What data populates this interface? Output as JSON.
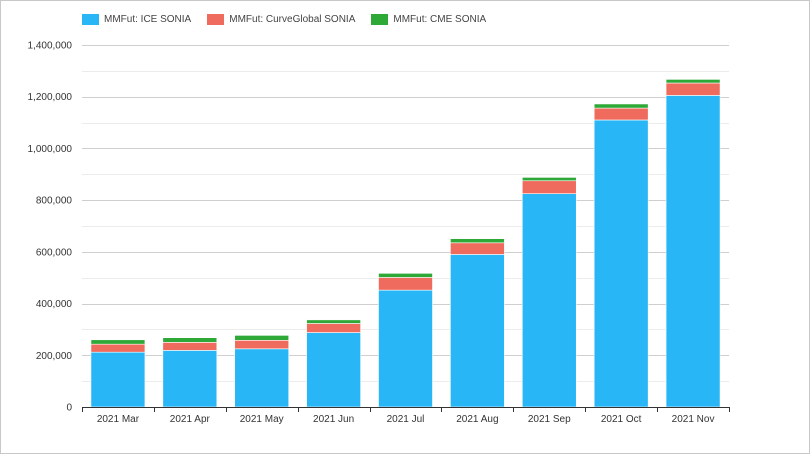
{
  "chart_data": {
    "type": "bar",
    "stacked": true,
    "categories": [
      "2021 Mar",
      "2021 Apr",
      "2021 May",
      "2021 Jun",
      "2021 Jul",
      "2021 Aug",
      "2021 Sep",
      "2021 Oct",
      "2021 Nov"
    ],
    "series": [
      {
        "name": "MMFut: ICE SONIA",
        "color": "#29b6f6",
        "values": [
          212000,
          219000,
          225000,
          288000,
          452000,
          590000,
          825000,
          1110000,
          1205000
        ]
      },
      {
        "name": "MMFut: CurveGlobal SONIA",
        "color": "#ef6b5d",
        "values": [
          31000,
          31000,
          33000,
          35000,
          49000,
          45000,
          50000,
          46000,
          48000
        ]
      },
      {
        "name": "MMFut: CME SONIA",
        "color": "#2ea836",
        "values": [
          17000,
          18000,
          19000,
          14000,
          16000,
          16000,
          13000,
          16000,
          14000
        ]
      }
    ],
    "yticks": [
      0,
      200000,
      400000,
      600000,
      800000,
      1000000,
      1200000,
      1400000
    ],
    "ytick_labels": [
      "0",
      "200,000",
      "400,000",
      "600,000",
      "800,000",
      "1,000,000",
      "1,200,000",
      "1,400,000"
    ],
    "ylim": [
      0,
      1400000
    ],
    "title": "",
    "xlabel": "",
    "ylabel": "",
    "grid": true,
    "legend_position": "top-left"
  }
}
